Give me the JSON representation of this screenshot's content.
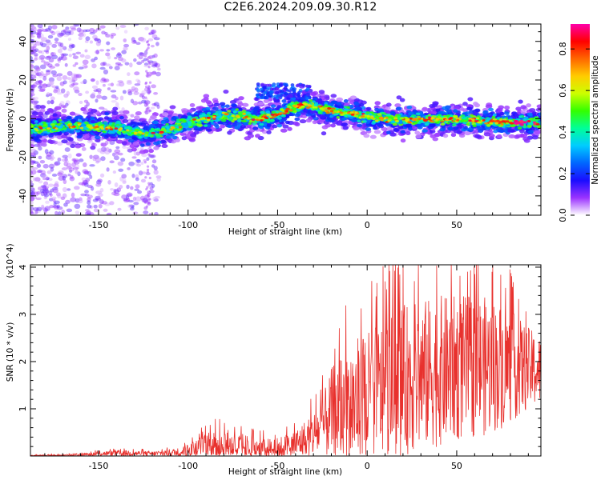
{
  "title": "C2E6.2024.209.09.30.R12",
  "colors": {
    "snr_line": "#e8312d",
    "frame": "#000000"
  },
  "colorbar": {
    "label": "Normalized spectral amplitude",
    "range": [
      0.0,
      0.92
    ],
    "ticks": [
      0.0,
      0.2,
      0.4,
      0.6,
      0.8
    ],
    "tick_labels": [
      "0.0",
      "0.2",
      "0.4",
      "0.6",
      "0.8"
    ],
    "colormap": [
      "#ffffff",
      "#9b33ff",
      "#1a0dff",
      "#0066ff",
      "#00ccff",
      "#00ff99",
      "#33ff00",
      "#ccff00",
      "#ffcc00",
      "#ff6600",
      "#ff0000",
      "#ff00aa"
    ]
  },
  "chart_data": [
    {
      "type": "heatmap",
      "name": "spectrogram",
      "xlabel": "Height of straight line (km)",
      "ylabel": "Frequency (Hz)",
      "xlim": [
        -188,
        97
      ],
      "ylim": [
        -50,
        49
      ],
      "xticks": [
        -150,
        -100,
        -50,
        0,
        50
      ],
      "xtick_labels": [
        "-150",
        "-100",
        "-50",
        "0",
        "50"
      ],
      "yticks": [
        -40,
        -20,
        0,
        20,
        40
      ],
      "ytick_labels": [
        "-40",
        "-20",
        "0",
        "20",
        "40"
      ],
      "ridge": {
        "x": [
          -188,
          -160,
          -140,
          -125,
          -115,
          -100,
          -80,
          -70,
          -60,
          -50,
          -40,
          -35,
          -30,
          -20,
          -10,
          0,
          20,
          40,
          60,
          80,
          97
        ],
        "y": [
          -5,
          -4,
          -5,
          -8,
          -7,
          -2,
          2,
          1,
          0,
          2,
          6,
          7,
          6,
          4,
          3,
          1,
          -1,
          0,
          -1,
          -2,
          -2
        ]
      }
    },
    {
      "type": "line",
      "name": "snr",
      "xlabel": "Height of straight line (km)",
      "ylabel": "SNR (10 * v/v)",
      "y_multiplier": "(x10^4)",
      "xlim": [
        -188,
        97
      ],
      "ylim": [
        0,
        4.05
      ],
      "xticks": [
        -150,
        -100,
        -50,
        0,
        50
      ],
      "xtick_labels": [
        "-150",
        "-100",
        "-50",
        "0",
        "50"
      ],
      "yticks": [
        1,
        2,
        3,
        4
      ],
      "ytick_labels": [
        "1",
        "2",
        "3",
        "4"
      ],
      "envelope": {
        "x": [
          -188,
          -160,
          -150,
          -135,
          -120,
          -105,
          -100,
          -90,
          -80,
          -70,
          -60,
          -50,
          -40,
          -35,
          -30,
          -25,
          -20,
          -15,
          -10,
          0,
          10,
          20,
          30,
          40,
          50,
          60,
          70,
          80,
          90,
          97
        ],
        "y_base": [
          0.01,
          0.02,
          0.05,
          0.06,
          0.05,
          0.08,
          0.1,
          0.2,
          0.25,
          0.2,
          0.12,
          0.15,
          0.25,
          0.35,
          0.45,
          0.6,
          0.9,
          1.0,
          1.05,
          1.2,
          1.4,
          1.6,
          1.7,
          1.8,
          1.85,
          1.9,
          1.9,
          1.9,
          1.85,
          1.8
        ],
        "y_amp": [
          0.01,
          0.03,
          0.06,
          0.08,
          0.06,
          0.12,
          0.2,
          0.35,
          0.45,
          0.35,
          0.3,
          0.3,
          0.4,
          0.5,
          0.6,
          0.8,
          1.2,
          1.5,
          1.7,
          1.8,
          1.9,
          2.0,
          2.0,
          2.0,
          1.95,
          1.9,
          1.8,
          1.5,
          1.1,
          0.9
        ]
      }
    }
  ]
}
